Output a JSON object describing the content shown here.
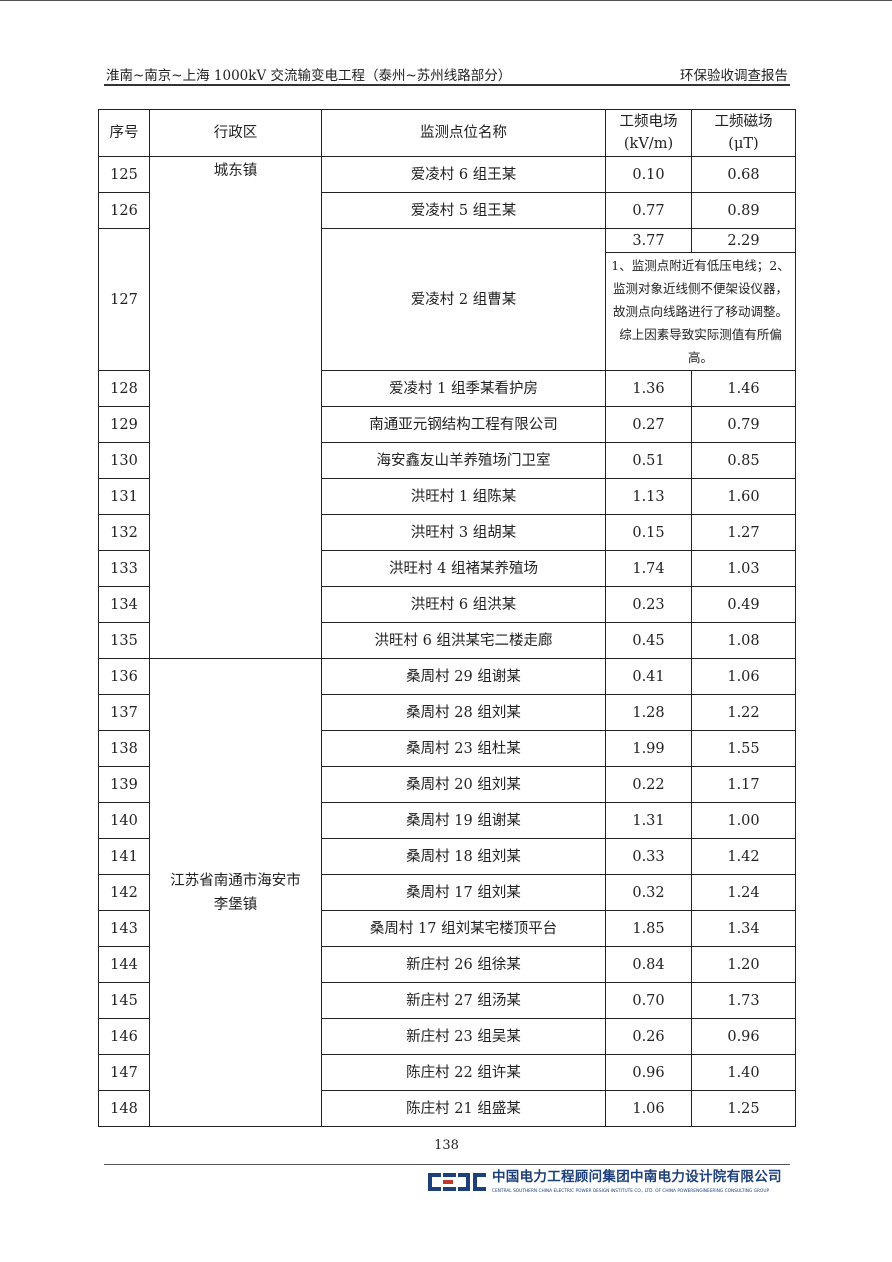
{
  "header": {
    "left": "淮南~南京~上海 1000kV 交流输变电工程（泰州~苏州线路部分）",
    "right": "环保验收调查报告"
  },
  "table": {
    "columns": [
      "序号",
      "行政区",
      "监测点位名称",
      "工频电场",
      "(kV/m)",
      "工频磁场",
      "(μT)"
    ],
    "districts": [
      "城东镇",
      "江苏省南通市海安市\n李堡镇"
    ],
    "rows": [
      {
        "no": "125",
        "name": "爱凌村 6 组王某",
        "e": "0.10",
        "b": "0.68"
      },
      {
        "no": "126",
        "name": "爱凌村 5 组王某",
        "e": "0.77",
        "b": "0.89"
      },
      {
        "no": "127",
        "name": "爱凌村 2 组曹某",
        "e": "3.77",
        "b": "2.29",
        "note": "1、监测点附近有低压电线；2、监测对象近线侧不便架设仪器，故测点向线路进行了移动调整。综上因素导致实际测值有所偏高。"
      },
      {
        "no": "128",
        "name": "爱凌村 1 组季某看护房",
        "e": "1.36",
        "b": "1.46"
      },
      {
        "no": "129",
        "name": "南通亚元钢结构工程有限公司",
        "e": "0.27",
        "b": "0.79"
      },
      {
        "no": "130",
        "name": "海安鑫友山羊养殖场门卫室",
        "e": "0.51",
        "b": "0.85"
      },
      {
        "no": "131",
        "name": "洪旺村 1 组陈某",
        "e": "1.13",
        "b": "1.60"
      },
      {
        "no": "132",
        "name": "洪旺村 3 组胡某",
        "e": "0.15",
        "b": "1.27"
      },
      {
        "no": "133",
        "name": "洪旺村 4 组褚某养殖场",
        "e": "1.74",
        "b": "1.03"
      },
      {
        "no": "134",
        "name": "洪旺村 6 组洪某",
        "e": "0.23",
        "b": "0.49"
      },
      {
        "no": "135",
        "name": "洪旺村 6 组洪某宅二楼走廊",
        "e": "0.45",
        "b": "1.08"
      },
      {
        "no": "136",
        "name": "桑周村 29 组谢某",
        "e": "0.41",
        "b": "1.06"
      },
      {
        "no": "137",
        "name": "桑周村 28 组刘某",
        "e": "1.28",
        "b": "1.22"
      },
      {
        "no": "138",
        "name": "桑周村 23 组杜某",
        "e": "1.99",
        "b": "1.55"
      },
      {
        "no": "139",
        "name": "桑周村 20 组刘某",
        "e": "0.22",
        "b": "1.17"
      },
      {
        "no": "140",
        "name": "桑周村 19 组谢某",
        "e": "1.31",
        "b": "1.00"
      },
      {
        "no": "141",
        "name": "桑周村 18 组刘某",
        "e": "0.33",
        "b": "1.42"
      },
      {
        "no": "142",
        "name": "桑周村 17 组刘某",
        "e": "0.32",
        "b": "1.24"
      },
      {
        "no": "143",
        "name": "桑周村 17 组刘某宅楼顶平台",
        "e": "1.85",
        "b": "1.34"
      },
      {
        "no": "144",
        "name": "新庄村 26 组徐某",
        "e": "0.84",
        "b": "1.20"
      },
      {
        "no": "145",
        "name": "新庄村 27 组汤某",
        "e": "0.70",
        "b": "1.73"
      },
      {
        "no": "146",
        "name": "新庄村 23 组吴某",
        "e": "0.26",
        "b": "0.96"
      },
      {
        "no": "147",
        "name": "陈庄村 22 组许某",
        "e": "0.96",
        "b": "1.40"
      },
      {
        "no": "148",
        "name": "陈庄村 21 组盛某",
        "e": "1.06",
        "b": "1.25"
      }
    ]
  },
  "footer": {
    "page": "138",
    "logo_cn": "中国电力工程顾问集团中南电力设计院有限公司",
    "logo_en": "CENTRAL SOUTHERN CHINA ELECTRIC POWER DESIGN INSTITUTE CO., LTD. OF CHINA POWERENGINEERING CONSULTING GROUP",
    "logo_mark": "CSEPDI",
    "brand_color": "#1d3f7a"
  }
}
